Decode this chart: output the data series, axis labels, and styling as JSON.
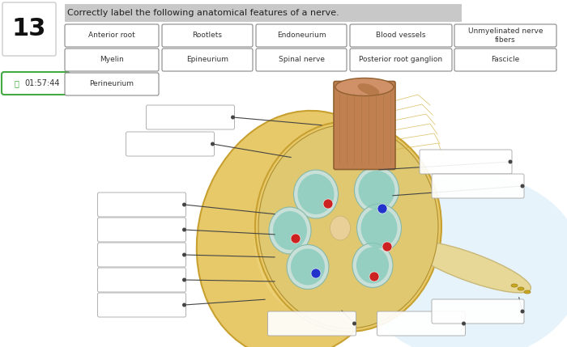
{
  "title": "Correctly label the following anatomical features of a nerve.",
  "question_number": "13",
  "timer": "01:57:44",
  "word_bank_row1": [
    "Anterior root",
    "Rootlets",
    "Endoneurium",
    "Blood vessels",
    "Unmyelinated nerve\nfibers"
  ],
  "word_bank_row2": [
    "Myelin",
    "Epineurium",
    "Spinal nerve",
    "Posterior root ganglion",
    "Fascicle"
  ],
  "word_bank_row3": [
    "Perineurium"
  ],
  "bg_color": "#ffffff",
  "anatomy_bg": "#eef4fa",
  "nerve_yellow": "#e8c96a",
  "nerve_yellow_dark": "#c8a030",
  "nerve_beige": "#e8d8b0",
  "fascicle_teal": "#80c8b8",
  "fascicle_teal_dark": "#50a898",
  "brown_nerve": "#c08050",
  "brown_nerve_dark": "#906030",
  "label_box_color": "#ffffff",
  "label_edge_color": "#aaaaaa",
  "line_color": "#444444",
  "text_color": "#333333",
  "title_bg": "#cccccc",
  "wb_box_color": "#ffffff",
  "wb_edge_color": "#777777"
}
